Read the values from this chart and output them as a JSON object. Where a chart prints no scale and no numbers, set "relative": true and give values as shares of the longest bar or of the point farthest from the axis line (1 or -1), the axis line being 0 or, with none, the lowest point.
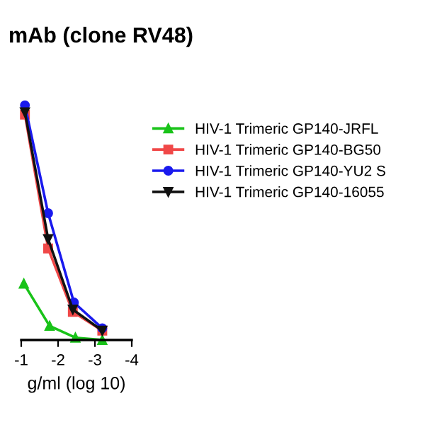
{
  "chart_data": {
    "type": "line",
    "title": "mAb (clone RV48)",
    "xlabel": "g/ml (log 10)",
    "relative": true,
    "xlim": [
      -1.0,
      -4.0
    ],
    "xticks": [
      -1,
      -2,
      -3,
      -4
    ],
    "legend": "right",
    "grid": false,
    "series": [
      {
        "name": "HIV-1 Trimeric GP140-JRFL",
        "color": "#19c319",
        "marker": "triangle",
        "x": [
          -1.07,
          -1.77,
          -2.47,
          -3.2
        ],
        "values": [
          0.24,
          0.06,
          0.01,
          0.0
        ]
      },
      {
        "name": "HIV-1 Trimeric GP140-BG50",
        "color": "#f04848",
        "marker": "square",
        "x": [
          -1.1,
          -1.73,
          -2.4,
          -3.2
        ],
        "values": [
          0.96,
          0.39,
          0.12,
          0.04
        ]
      },
      {
        "name": "HIV-1 Trimeric GP140-YU2 S",
        "color": "#1a1aee",
        "marker": "circle",
        "x": [
          -1.1,
          -1.73,
          -2.43,
          -3.2
        ],
        "values": [
          1.0,
          0.54,
          0.16,
          0.05
        ]
      },
      {
        "name": "HIV-1 Trimeric GP140-16055",
        "color": "#111111",
        "marker": "triangle_down",
        "x": [
          -1.1,
          -1.73,
          -2.4,
          -3.2
        ],
        "values": [
          0.97,
          0.43,
          0.13,
          0.04
        ]
      }
    ]
  }
}
